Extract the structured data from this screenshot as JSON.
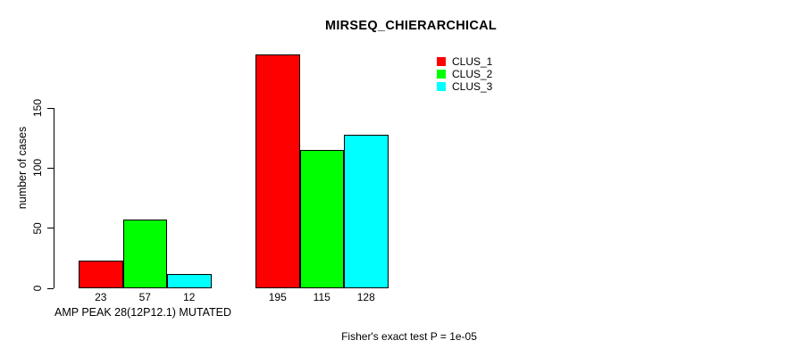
{
  "chart_data": {
    "type": "bar",
    "title": "MIRSEQ_CHIERARCHICAL",
    "ylabel": "number of cases",
    "xlabel": "",
    "yticks": [
      0,
      50,
      100,
      150
    ],
    "ylim": [
      0,
      200
    ],
    "grid": false,
    "legend_position": "top-right",
    "group_labels": [
      "AMP PEAK 28(12P12.1) MUTATED",
      ""
    ],
    "series": [
      {
        "name": "CLUS_1",
        "color": "#FF0000",
        "values": [
          23,
          195
        ]
      },
      {
        "name": "CLUS_2",
        "color": "#00FF00",
        "values": [
          57,
          115
        ]
      },
      {
        "name": "CLUS_3",
        "color": "#00FFFF",
        "values": [
          12,
          128
        ]
      }
    ],
    "bar_value_labels": [
      [
        "23",
        "57",
        "12"
      ],
      [
        "195",
        "115",
        "128"
      ]
    ],
    "annotation": "Fisher's exact test P = 1e-05"
  },
  "colors": {
    "axis": "#000000",
    "text": "#000000",
    "background": "#FFFFFF"
  }
}
